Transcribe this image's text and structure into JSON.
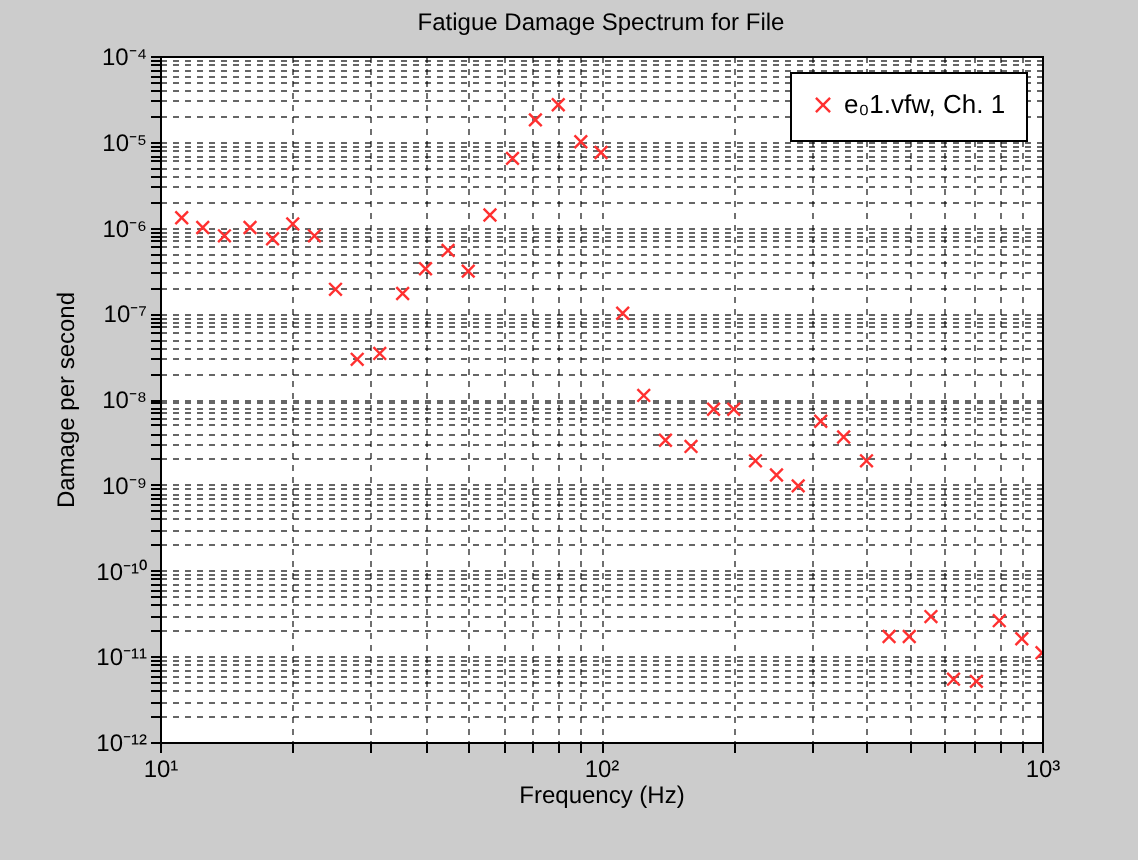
{
  "chart_data": {
    "type": "scatter",
    "title": "Fatigue Damage Spectrum for File",
    "xlabel": "Frequency (Hz)",
    "ylabel": "Damage per second",
    "x": [
      11.2,
      12.5,
      14,
      16,
      18,
      20,
      22.4,
      25,
      28,
      31.5,
      35.5,
      40,
      45,
      50,
      56,
      63,
      71,
      80,
      90,
      100,
      112,
      125,
      140,
      160,
      180,
      200,
      224,
      250,
      280,
      315,
      355,
      400,
      450,
      500,
      560,
      630,
      710,
      800,
      900,
      1000
    ],
    "series": [
      {
        "name": "e₀1.vfw, Ch. 1",
        "color": "#ff3030",
        "values": [
          1.3e-06,
          1e-06,
          8e-07,
          1e-06,
          7.4e-07,
          1.1e-06,
          8e-07,
          1.9e-07,
          2.9e-08,
          3.4e-08,
          1.7e-07,
          3.3e-07,
          5.4e-07,
          3.1e-07,
          1.4e-06,
          6.4e-06,
          1.8e-05,
          2.7e-05,
          1e-05,
          7.5e-06,
          1e-07,
          1.1e-08,
          3.3e-09,
          2.8e-09,
          7.6e-09,
          7.6e-09,
          1.9e-09,
          1.3e-09,
          9.7e-10,
          5.5e-09,
          3.6e-09,
          1.9e-09,
          1.7e-11,
          1.7e-11,
          2.9e-11,
          5.4e-12,
          5.1e-12,
          2.6e-11,
          1.6e-11,
          1.1e-11
        ]
      }
    ],
    "log": "xy",
    "xlim": [
      10,
      1000
    ],
    "ylim": [
      1e-12,
      0.0001
    ],
    "xticks": [
      {
        "value": 10,
        "label": "10¹"
      },
      {
        "value": 20,
        "label": null
      },
      {
        "value": 30,
        "label": null
      },
      {
        "value": 40,
        "label": null
      },
      {
        "value": 50,
        "label": null
      },
      {
        "value": 60,
        "label": null
      },
      {
        "value": 70,
        "label": null
      },
      {
        "value": 80,
        "label": null
      },
      {
        "value": 90,
        "label": null
      },
      {
        "value": 100,
        "label": "10²"
      },
      {
        "value": 200,
        "label": null
      },
      {
        "value": 300,
        "label": null
      },
      {
        "value": 400,
        "label": null
      },
      {
        "value": 500,
        "label": null
      },
      {
        "value": 600,
        "label": null
      },
      {
        "value": 700,
        "label": null
      },
      {
        "value": 800,
        "label": null
      },
      {
        "value": 900,
        "label": null
      },
      {
        "value": 1000,
        "label": "10³"
      }
    ],
    "yticks": [
      {
        "value": 1e-12,
        "label": "10⁻¹²"
      },
      {
        "value": 2e-12,
        "label": null
      },
      {
        "value": 3e-12,
        "label": null
      },
      {
        "value": 4e-12,
        "label": null
      },
      {
        "value": 5e-12,
        "label": null
      },
      {
        "value": 6e-12,
        "label": null
      },
      {
        "value": 7e-12,
        "label": null
      },
      {
        "value": 8e-12,
        "label": null
      },
      {
        "value": 9e-12,
        "label": null
      },
      {
        "value": 1e-11,
        "label": "10⁻¹¹"
      },
      {
        "value": 2e-11,
        "label": null
      },
      {
        "value": 3e-11,
        "label": null
      },
      {
        "value": 4e-11,
        "label": null
      },
      {
        "value": 5e-11,
        "label": null
      },
      {
        "value": 6e-11,
        "label": null
      },
      {
        "value": 7e-11,
        "label": null
      },
      {
        "value": 8e-11,
        "label": null
      },
      {
        "value": 9e-11,
        "label": null
      },
      {
        "value": 1e-10,
        "label": "10⁻¹⁰"
      },
      {
        "value": 2e-10,
        "label": null
      },
      {
        "value": 3e-10,
        "label": null
      },
      {
        "value": 4e-10,
        "label": null
      },
      {
        "value": 5e-10,
        "label": null
      },
      {
        "value": 6e-10,
        "label": null
      },
      {
        "value": 7e-10,
        "label": null
      },
      {
        "value": 8e-10,
        "label": null
      },
      {
        "value": 9e-10,
        "label": null
      },
      {
        "value": 1e-09,
        "label": "10⁻⁹"
      },
      {
        "value": 2e-09,
        "label": null
      },
      {
        "value": 3e-09,
        "label": null
      },
      {
        "value": 4e-09,
        "label": null
      },
      {
        "value": 5e-09,
        "label": null
      },
      {
        "value": 6e-09,
        "label": null
      },
      {
        "value": 7e-09,
        "label": null
      },
      {
        "value": 8e-09,
        "label": null
      },
      {
        "value": 9e-09,
        "label": null
      },
      {
        "value": 1e-08,
        "label": "10⁻⁸"
      },
      {
        "value": 2e-08,
        "label": null
      },
      {
        "value": 3e-08,
        "label": null
      },
      {
        "value": 4e-08,
        "label": null
      },
      {
        "value": 5e-08,
        "label": null
      },
      {
        "value": 6e-08,
        "label": null
      },
      {
        "value": 7e-08,
        "label": null
      },
      {
        "value": 8e-08,
        "label": null
      },
      {
        "value": 9e-08,
        "label": null
      },
      {
        "value": 1e-07,
        "label": "10⁻⁷"
      },
      {
        "value": 2e-07,
        "label": null
      },
      {
        "value": 3e-07,
        "label": null
      },
      {
        "value": 4e-07,
        "label": null
      },
      {
        "value": 5e-07,
        "label": null
      },
      {
        "value": 6e-07,
        "label": null
      },
      {
        "value": 7e-07,
        "label": null
      },
      {
        "value": 8e-07,
        "label": null
      },
      {
        "value": 9e-07,
        "label": null
      },
      {
        "value": 1e-06,
        "label": "10⁻⁶"
      },
      {
        "value": 2e-06,
        "label": null
      },
      {
        "value": 3e-06,
        "label": null
      },
      {
        "value": 4e-06,
        "label": null
      },
      {
        "value": 5e-06,
        "label": null
      },
      {
        "value": 6e-06,
        "label": null
      },
      {
        "value": 7e-06,
        "label": null
      },
      {
        "value": 8e-06,
        "label": null
      },
      {
        "value": 9e-06,
        "label": null
      },
      {
        "value": 1e-05,
        "label": "10⁻⁵"
      },
      {
        "value": 2e-05,
        "label": null
      },
      {
        "value": 3e-05,
        "label": null
      },
      {
        "value": 4e-05,
        "label": null
      },
      {
        "value": 5e-05,
        "label": null
      },
      {
        "value": 6e-05,
        "label": null
      },
      {
        "value": 7e-05,
        "label": null
      },
      {
        "value": 8e-05,
        "label": null
      },
      {
        "value": 9e-05,
        "label": null
      },
      {
        "value": 0.0001,
        "label": "10⁻⁴"
      }
    ],
    "grid": true,
    "marker": "cross",
    "legend": "top right"
  }
}
